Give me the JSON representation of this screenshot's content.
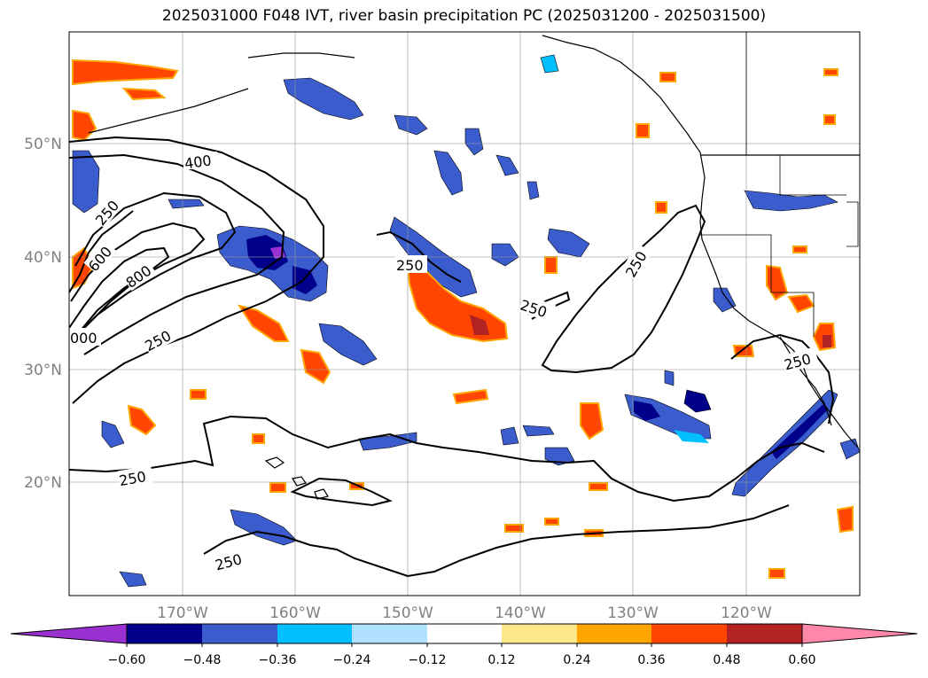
{
  "title": "2025031000 F048 IVT, river basin precipitation PC (2025031200 - 2025031500)",
  "map": {
    "lon_labels": [
      "170°W",
      "160°W",
      "150°W",
      "140°W",
      "130°W",
      "120°W"
    ],
    "lat_labels": [
      "50°N",
      "40°N",
      "30°N",
      "20°N"
    ],
    "contour_labels": [
      {
        "id": "c400",
        "text": "400"
      },
      {
        "id": "c250a",
        "text": "250"
      },
      {
        "id": "c600",
        "text": "600"
      },
      {
        "id": "c800",
        "text": "800"
      },
      {
        "id": "c1000",
        "text": "000"
      },
      {
        "id": "c250b",
        "text": "250"
      },
      {
        "id": "c250c",
        "text": "250"
      },
      {
        "id": "c250d",
        "text": "250"
      },
      {
        "id": "c250e",
        "text": "250"
      },
      {
        "id": "c250f",
        "text": "250"
      },
      {
        "id": "c250g",
        "text": "250"
      },
      {
        "id": "c250h",
        "text": "250"
      }
    ]
  },
  "colorbar": {
    "ticks": [
      "−0.60",
      "−0.48",
      "−0.36",
      "−0.24",
      "−0.12",
      "0.12",
      "0.24",
      "0.36",
      "0.48",
      "0.60"
    ],
    "colors": [
      "#9b30d0",
      "#00008b",
      "#3a5ccc",
      "#00bfff",
      "#b0e2ff",
      "#ffffff",
      "#ffe88a",
      "#ffa500",
      "#ff4500",
      "#b22222",
      "#ff88aa"
    ]
  },
  "palette": {
    "neg_deep": "#00008b",
    "neg_mid": "#3a5ccc",
    "neg_light": "#00bfff",
    "neg_pale": "#b0e2ff",
    "pos_pale": "#ffe88a",
    "pos_light": "#ffa500",
    "pos_mid": "#ff4500",
    "pos_deep": "#b22222",
    "extreme_neg": "#9b30d0"
  }
}
